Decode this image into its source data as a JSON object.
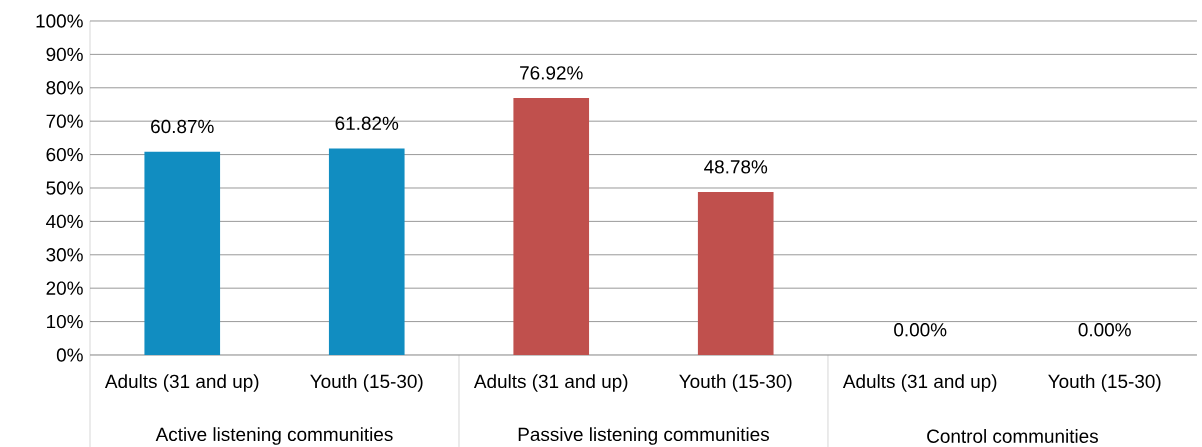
{
  "chart_data": {
    "type": "bar",
    "categories": [
      "Adults (31 and up)",
      "Youth (15-30)",
      "Adults (31 and up)",
      "Youth (15-30)",
      "Adults (31 and up)",
      "Youth (15-30)"
    ],
    "values": [
      60.87,
      61.82,
      76.92,
      48.78,
      0,
      0
    ],
    "value_labels": [
      "60.87%",
      "61.82%",
      "76.92%",
      "48.78%",
      "0.00%",
      "0.00%"
    ],
    "colors": [
      "#118dc1",
      "#118dc1",
      "#c0504d",
      "#c0504d",
      "#9bbb59",
      "#9bbb59"
    ],
    "annotations": [
      "Active listening communities",
      "Passive listening communities",
      "Control communities"
    ],
    "ylim": [
      0,
      100
    ],
    "yticks": [
      {
        "value": 0,
        "label": "0%"
      },
      {
        "value": 10,
        "label": "10%"
      },
      {
        "value": 20,
        "label": "20%"
      },
      {
        "value": 30,
        "label": "30%"
      },
      {
        "value": 40,
        "label": "40%"
      },
      {
        "value": 50,
        "label": "50%"
      },
      {
        "value": 60,
        "label": "60%"
      },
      {
        "value": 70,
        "label": "70%"
      },
      {
        "value": 80,
        "label": "80%"
      },
      {
        "value": 90,
        "label": "90%"
      },
      {
        "value": 100,
        "label": "100%"
      }
    ],
    "grid": "y"
  }
}
